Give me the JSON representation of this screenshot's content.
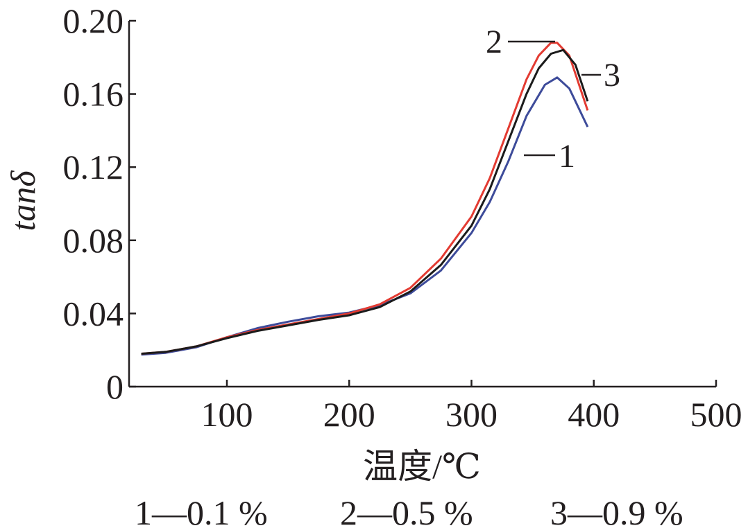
{
  "chart_data": {
    "type": "line",
    "xlabel": "温度/℃",
    "ylabel": "tanδ",
    "xlim": [
      20,
      500
    ],
    "ylim": [
      0,
      0.2
    ],
    "x_ticks": [
      100,
      200,
      300,
      400,
      500
    ],
    "x_tick_labels": [
      "100",
      "200",
      "300",
      "400",
      "500"
    ],
    "y_ticks": [
      0,
      0.04,
      0.08,
      0.12,
      0.16,
      0.2
    ],
    "y_tick_labels": [
      "0",
      "0.04",
      "0.08",
      "0.12",
      "0.16",
      "0.20"
    ],
    "grid": false,
    "series": [
      {
        "name": "1",
        "color": "#3d4b9a",
        "x": [
          30,
          50,
          75,
          100,
          125,
          150,
          175,
          200,
          225,
          250,
          275,
          300,
          315,
          330,
          345,
          360,
          370,
          380,
          395
        ],
        "y": [
          0.0175,
          0.0185,
          0.0215,
          0.027,
          0.032,
          0.0355,
          0.0385,
          0.0405,
          0.0445,
          0.051,
          0.0635,
          0.084,
          0.101,
          0.123,
          0.148,
          0.165,
          0.169,
          0.163,
          0.142
        ]
      },
      {
        "name": "2",
        "color": "#e33b32",
        "x": [
          30,
          50,
          75,
          100,
          125,
          150,
          175,
          200,
          225,
          250,
          275,
          300,
          315,
          330,
          345,
          355,
          365,
          370,
          380,
          395
        ],
        "y": [
          0.018,
          0.019,
          0.022,
          0.027,
          0.031,
          0.034,
          0.037,
          0.04,
          0.045,
          0.054,
          0.07,
          0.093,
          0.114,
          0.141,
          0.168,
          0.181,
          0.188,
          0.188,
          0.181,
          0.151
        ]
      },
      {
        "name": "3",
        "color": "#1b1b1b",
        "x": [
          30,
          50,
          75,
          100,
          125,
          150,
          175,
          200,
          225,
          250,
          275,
          300,
          315,
          330,
          345,
          355,
          365,
          375,
          385,
          395
        ],
        "y": [
          0.018,
          0.019,
          0.022,
          0.0265,
          0.0305,
          0.0335,
          0.0365,
          0.039,
          0.0435,
          0.052,
          0.0665,
          0.088,
          0.108,
          0.134,
          0.16,
          0.174,
          0.182,
          0.184,
          0.176,
          0.156
        ]
      }
    ],
    "annotations": [
      "1",
      "2",
      "3"
    ],
    "legend": [
      "1—0.1 %",
      "2—0.5 %",
      "3—0.9 %"
    ]
  }
}
